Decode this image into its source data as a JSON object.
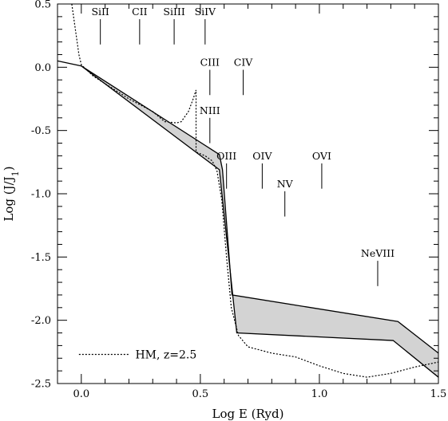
{
  "chart_data": {
    "type": "line",
    "xlabel": "Log E (Ryd)",
    "ylabel": "Log (J/J",
    "ylabel_sub": "1",
    "ylabel_close": ")",
    "xlim": [
      -0.1,
      1.5
    ],
    "ylim": [
      -2.5,
      0.5
    ],
    "x_ticks": [
      0.0,
      0.5,
      1.0,
      1.5
    ],
    "x_tick_labels": [
      "0.0",
      "0.5",
      "1.0",
      "1.5"
    ],
    "x_minor_step": 0.1,
    "y_ticks": [
      0.5,
      0.0,
      -0.5,
      -1.0,
      -1.5,
      -2.0,
      -2.5
    ],
    "y_tick_labels": [
      "0.5",
      "0.0",
      "-0.5",
      "-1.0",
      "-1.5",
      "-2.0",
      "-2.5"
    ],
    "y_minor_step": 0.1,
    "grid": false,
    "band": {
      "upper": [
        [
          -0.1,
          0.05
        ],
        [
          0.0,
          0.01
        ],
        [
          0.58,
          -0.69
        ],
        [
          0.593,
          -0.81
        ],
        [
          0.633,
          -1.8
        ],
        [
          1.33,
          -2.01
        ],
        [
          1.5,
          -2.26
        ]
      ],
      "lower": [
        [
          0.0,
          0.01
        ],
        [
          0.58,
          -0.81
        ],
        [
          0.653,
          -2.1
        ],
        [
          1.31,
          -2.16
        ],
        [
          1.5,
          -2.45
        ]
      ],
      "fill": "#d3d3d3"
    },
    "hm_curve": {
      "name": "HM, z=2.5",
      "points": [
        [
          -0.04,
          0.5
        ],
        [
          -0.01,
          0.1
        ],
        [
          0.0,
          0.02
        ],
        [
          0.05,
          -0.07
        ],
        [
          0.1,
          -0.13
        ],
        [
          0.2,
          -0.25
        ],
        [
          0.3,
          -0.35
        ],
        [
          0.35,
          -0.43
        ],
        [
          0.4,
          -0.44
        ],
        [
          0.42,
          -0.43
        ],
        [
          0.45,
          -0.35
        ],
        [
          0.47,
          -0.25
        ],
        [
          0.482,
          -0.18
        ],
        [
          0.482,
          -0.67
        ],
        [
          0.52,
          -0.7
        ],
        [
          0.55,
          -0.74
        ],
        [
          0.57,
          -0.82
        ],
        [
          0.59,
          -1.05
        ],
        [
          0.61,
          -1.5
        ],
        [
          0.63,
          -1.9
        ],
        [
          0.66,
          -2.12
        ],
        [
          0.7,
          -2.21
        ],
        [
          0.8,
          -2.26
        ],
        [
          0.9,
          -2.29
        ],
        [
          1.0,
          -2.36
        ],
        [
          1.1,
          -2.42
        ],
        [
          1.2,
          -2.45
        ],
        [
          1.3,
          -2.42
        ],
        [
          1.4,
          -2.37
        ],
        [
          1.5,
          -2.33
        ]
      ],
      "legend_line_x": [
        -0.01,
        0.2
      ],
      "legend_y": -2.27
    },
    "ion_markers": [
      {
        "label": "SiII",
        "x": 0.08,
        "y_top": 0.38,
        "y_bottom": 0.18
      },
      {
        "label": "CII",
        "x": 0.245,
        "y_top": 0.38,
        "y_bottom": 0.18
      },
      {
        "label": "SiIII",
        "x": 0.39,
        "y_top": 0.38,
        "y_bottom": 0.18
      },
      {
        "label": "SiIV",
        "x": 0.52,
        "y_top": 0.38,
        "y_bottom": 0.18
      },
      {
        "label": "CIII",
        "x": 0.54,
        "y_top": -0.02,
        "y_bottom": -0.22
      },
      {
        "label": "CIV",
        "x": 0.68,
        "y_top": -0.02,
        "y_bottom": -0.22
      },
      {
        "label": "NIII",
        "x": 0.54,
        "y_top": -0.4,
        "y_bottom": -0.6
      },
      {
        "label": "OIII",
        "x": 0.61,
        "y_top": -0.76,
        "y_bottom": -0.96
      },
      {
        "label": "OIV",
        "x": 0.76,
        "y_top": -0.76,
        "y_bottom": -0.96
      },
      {
        "label": "OVI",
        "x": 1.01,
        "y_top": -0.76,
        "y_bottom": -0.96
      },
      {
        "label": "NV",
        "x": 0.855,
        "y_top": -0.98,
        "y_bottom": -1.18
      },
      {
        "label": "NeVIII",
        "x": 1.245,
        "y_top": -1.53,
        "y_bottom": -1.73
      }
    ]
  }
}
